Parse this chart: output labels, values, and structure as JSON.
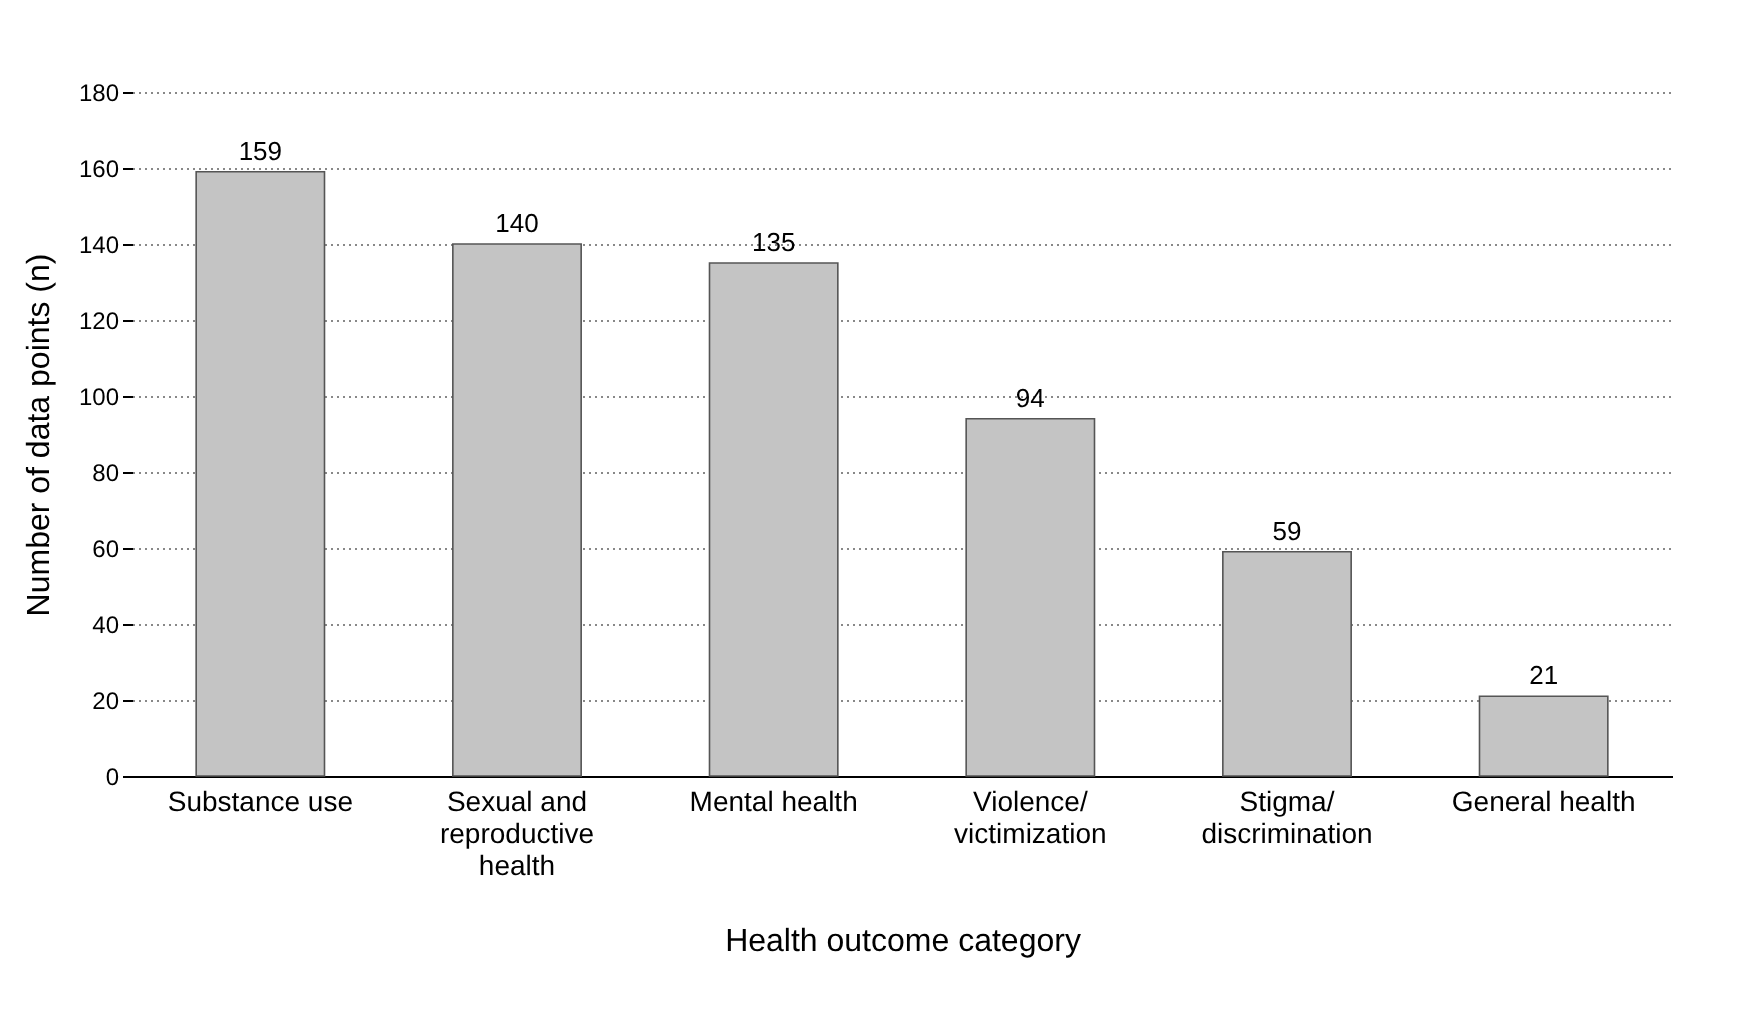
{
  "chart_data": {
    "type": "bar",
    "xlabel": "Health outcome category",
    "ylabel": "Number of data points (n)",
    "categories": [
      "Substance use",
      "Sexual and reproductive health",
      "Mental health",
      "Violence/victimization",
      "Stigma/discrimination",
      "General health"
    ],
    "values": [
      159,
      140,
      135,
      94,
      59,
      21
    ],
    "color": "#c4c4c4",
    "ylim": [
      0,
      180
    ],
    "yticks": [
      0,
      20,
      40,
      60,
      80,
      100,
      120,
      140,
      160,
      180
    ],
    "grid": "y",
    "data_labels": true
  }
}
